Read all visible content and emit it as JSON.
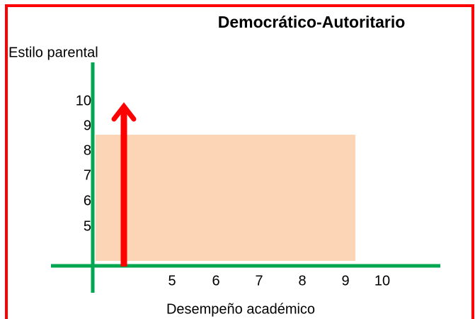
{
  "title": "Democrático-Autoritario",
  "y_axis_label": "Estilo parental",
  "x_axis_label": "Desempeño académico",
  "y_tick_labels": [
    "10",
    "9",
    "8",
    "7",
    "6",
    "5"
  ],
  "x_tick_labels": [
    "5",
    "6",
    "7",
    "8",
    "9",
    "10"
  ]
}
